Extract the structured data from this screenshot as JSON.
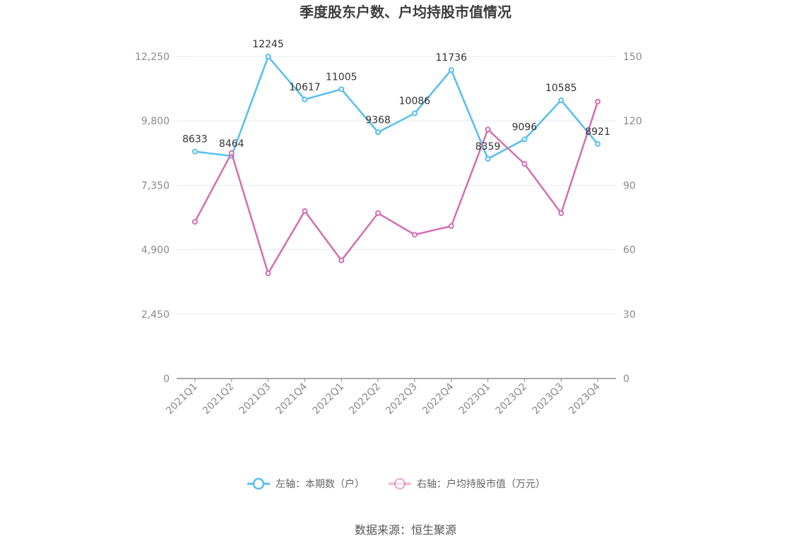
{
  "chart_data": {
    "type": "line",
    "title": "季度股东户数、户均持股市值情况",
    "categories": [
      "2021Q1",
      "2021Q2",
      "2021Q3",
      "2021Q4",
      "2022Q1",
      "2022Q2",
      "2022Q3",
      "2022Q4",
      "2023Q1",
      "2023Q2",
      "2023Q3",
      "2023Q4"
    ],
    "left_axis": {
      "ticks": [
        "0",
        "2,450",
        "4,900",
        "7,350",
        "9,800",
        "12,250"
      ],
      "ylim": [
        0,
        12250
      ]
    },
    "right_axis": {
      "ticks": [
        "0",
        "30",
        "60",
        "90",
        "120",
        "150"
      ],
      "ylim": [
        0,
        150
      ]
    },
    "series": [
      {
        "name": "左轴：本期数（户）",
        "axis": "left",
        "color": "#56bef0",
        "values": [
          8633,
          8464,
          12245,
          10617,
          11005,
          9368,
          10086,
          11736,
          8359,
          9096,
          10585,
          8921
        ],
        "labels": [
          "8633",
          "8464",
          "12245",
          "10617",
          "11005",
          "9368",
          "10086",
          "11736",
          "8359",
          "9096",
          "10585",
          "8921"
        ]
      },
      {
        "name": "右轴：户均持股市值（万元）",
        "axis": "right",
        "color": "#d36eb1",
        "values": [
          73,
          105,
          49,
          78,
          55,
          77,
          67,
          71,
          116,
          100,
          77,
          129
        ]
      }
    ],
    "grid": true,
    "legend_position": "bottom"
  },
  "footer": {
    "source": "数据来源：恒生聚源"
  }
}
